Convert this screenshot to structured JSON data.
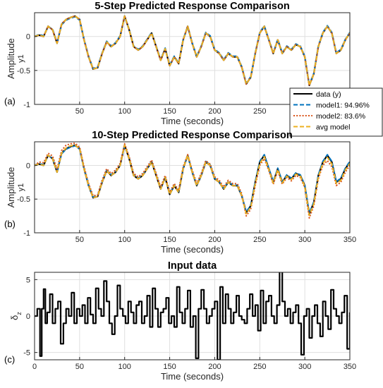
{
  "chart_data": [
    {
      "type": "line",
      "panel_tag": "(a)",
      "title": "5-Step Predicted Response Comparison",
      "xlabel": "Time (seconds)",
      "ylabel": "Amplitude",
      "ylabel_sub": "y1",
      "xlim": [
        0,
        350
      ],
      "ylim": [
        -1,
        0.35
      ],
      "xticks": [
        50,
        100,
        150,
        200,
        250,
        300
      ],
      "yticks": [
        -1,
        -0.5,
        0
      ],
      "grid": true,
      "legend": {
        "position": "bottom-right",
        "entries": [
          {
            "label": "data (y)",
            "color": "#000000",
            "style": "solid"
          },
          {
            "label": "model1: 94.96%",
            "color": "#0072BD",
            "style": "dashed"
          },
          {
            "label": "model2: 83.6%",
            "color": "#D95319",
            "style": "dotted"
          },
          {
            "label": "avg model",
            "color": "#EDB120",
            "style": "dashed"
          }
        ]
      },
      "x": [
        0,
        5,
        10,
        15,
        20,
        25,
        30,
        35,
        40,
        45,
        50,
        55,
        60,
        65,
        70,
        75,
        80,
        85,
        90,
        95,
        100,
        105,
        110,
        115,
        120,
        125,
        130,
        135,
        140,
        145,
        150,
        155,
        160,
        165,
        170,
        175,
        180,
        185,
        190,
        195,
        200,
        205,
        210,
        215,
        220,
        225,
        230,
        235,
        240,
        245,
        250,
        255,
        260,
        265,
        270,
        275,
        280,
        285,
        290,
        295,
        300,
        305,
        310,
        315,
        320,
        325,
        330,
        335,
        340,
        345,
        350
      ],
      "series": [
        {
          "name": "data (y)",
          "color": "#000000",
          "style": "solid",
          "values": [
            0,
            0.02,
            0,
            0.15,
            0.1,
            -0.1,
            0.18,
            0.25,
            0.28,
            0.3,
            0.25,
            -0.05,
            -0.3,
            -0.48,
            -0.46,
            -0.25,
            -0.08,
            -0.15,
            -0.1,
            0,
            0.3,
            0.1,
            -0.15,
            -0.2,
            -0.15,
            -0.05,
            0.05,
            -0.15,
            -0.35,
            -0.18,
            -0.43,
            -0.3,
            -0.4,
            -0.05,
            0.15,
            -0.1,
            -0.3,
            -0.15,
            0.05,
            0,
            -0.2,
            -0.25,
            -0.35,
            -0.25,
            -0.3,
            -0.3,
            -0.45,
            -0.7,
            -0.6,
            -0.25,
            0.05,
            0.15,
            -0.05,
            -0.25,
            -0.05,
            -0.25,
            -0.15,
            -0.2,
            -0.12,
            -0.15,
            -0.3,
            -0.72,
            -0.55,
            -0.15,
            0.05,
            0.15,
            0.05,
            -0.25,
            -0.2,
            -0.05,
            0.05
          ]
        },
        {
          "name": "model1: 94.96%",
          "color": "#0072BD",
          "style": "dashed",
          "values": [
            0,
            0.03,
            0.01,
            0.14,
            0.11,
            -0.09,
            0.17,
            0.24,
            0.27,
            0.29,
            0.24,
            -0.04,
            -0.29,
            -0.47,
            -0.45,
            -0.24,
            -0.07,
            -0.14,
            -0.09,
            0.01,
            0.29,
            0.11,
            -0.14,
            -0.19,
            -0.14,
            -0.04,
            0.06,
            -0.14,
            -0.34,
            -0.17,
            -0.42,
            -0.29,
            -0.39,
            -0.04,
            0.14,
            -0.09,
            -0.29,
            -0.14,
            0.06,
            0.01,
            -0.19,
            -0.24,
            -0.34,
            -0.24,
            -0.29,
            -0.29,
            -0.44,
            -0.69,
            -0.59,
            -0.24,
            0.06,
            0.16,
            -0.04,
            -0.24,
            -0.04,
            -0.24,
            -0.14,
            -0.19,
            -0.11,
            -0.14,
            -0.29,
            -0.71,
            -0.54,
            -0.14,
            0.06,
            0.16,
            0.06,
            -0.24,
            -0.19,
            -0.04,
            0.06
          ]
        },
        {
          "name": "model2: 83.6%",
          "color": "#D95319",
          "style": "dotted",
          "values": [
            0,
            0.02,
            0,
            0.15,
            0.1,
            -0.1,
            0.18,
            0.25,
            0.28,
            0.3,
            0.25,
            -0.05,
            -0.3,
            -0.48,
            -0.46,
            -0.25,
            -0.08,
            -0.15,
            -0.1,
            0,
            0.3,
            0.1,
            -0.15,
            -0.2,
            -0.15,
            -0.05,
            0.05,
            -0.15,
            -0.35,
            -0.18,
            -0.43,
            -0.3,
            -0.4,
            -0.05,
            0.15,
            -0.1,
            -0.3,
            -0.15,
            0.05,
            0,
            -0.2,
            -0.25,
            -0.35,
            -0.25,
            -0.3,
            -0.3,
            -0.45,
            -0.7,
            -0.6,
            -0.25,
            0.05,
            0.15,
            -0.05,
            -0.25,
            -0.05,
            -0.25,
            -0.15,
            -0.2,
            -0.12,
            -0.15,
            -0.3,
            -0.72,
            -0.55,
            -0.15,
            0.05,
            0.15,
            0.05,
            -0.25,
            -0.2,
            -0.05,
            0.05
          ]
        },
        {
          "name": "avg model",
          "color": "#EDB120",
          "style": "dashed",
          "values": [
            0,
            0.02,
            0,
            0.15,
            0.1,
            -0.1,
            0.18,
            0.25,
            0.28,
            0.3,
            0.25,
            -0.05,
            -0.3,
            -0.48,
            -0.46,
            -0.25,
            -0.08,
            -0.15,
            -0.1,
            0,
            0.3,
            0.1,
            -0.15,
            -0.2,
            -0.15,
            -0.05,
            0.05,
            -0.15,
            -0.35,
            -0.18,
            -0.43,
            -0.3,
            -0.4,
            -0.05,
            0.15,
            -0.1,
            -0.3,
            -0.15,
            0.05,
            0,
            -0.2,
            -0.25,
            -0.35,
            -0.25,
            -0.3,
            -0.3,
            -0.45,
            -0.7,
            -0.6,
            -0.25,
            0.05,
            0.15,
            -0.05,
            -0.25,
            -0.05,
            -0.25,
            -0.15,
            -0.2,
            -0.12,
            -0.15,
            -0.3,
            -0.72,
            -0.55,
            -0.15,
            0.05,
            0.15,
            0.05,
            -0.25,
            -0.2,
            -0.05,
            0.05
          ]
        }
      ]
    },
    {
      "type": "line",
      "panel_tag": "(b)",
      "title": "10-Step Predicted Response Comparison",
      "xlabel": "Time (seconds)",
      "ylabel": "Amplitude",
      "ylabel_sub": "y1",
      "xlim": [
        0,
        350
      ],
      "ylim": [
        -1,
        0.35
      ],
      "xticks": [
        50,
        100,
        150,
        200,
        250,
        300,
        350
      ],
      "yticks": [
        -1,
        -0.5,
        0
      ],
      "grid": true,
      "x": [
        0,
        5,
        10,
        15,
        20,
        25,
        30,
        35,
        40,
        45,
        50,
        55,
        60,
        65,
        70,
        75,
        80,
        85,
        90,
        95,
        100,
        105,
        110,
        115,
        120,
        125,
        130,
        135,
        140,
        145,
        150,
        155,
        160,
        165,
        170,
        175,
        180,
        185,
        190,
        195,
        200,
        205,
        210,
        215,
        220,
        225,
        230,
        235,
        240,
        245,
        250,
        255,
        260,
        265,
        270,
        275,
        280,
        285,
        290,
        295,
        300,
        305,
        310,
        315,
        320,
        325,
        330,
        335,
        340,
        345,
        350
      ],
      "series": [
        {
          "name": "data (y)",
          "color": "#000000",
          "style": "solid",
          "values": [
            0,
            0.02,
            0,
            0.15,
            0.1,
            -0.1,
            0.18,
            0.25,
            0.28,
            0.3,
            0.25,
            -0.05,
            -0.3,
            -0.48,
            -0.46,
            -0.25,
            -0.08,
            -0.15,
            -0.1,
            0,
            0.3,
            0.1,
            -0.15,
            -0.2,
            -0.15,
            -0.05,
            0.05,
            -0.15,
            -0.35,
            -0.18,
            -0.43,
            -0.3,
            -0.4,
            -0.05,
            0.15,
            -0.1,
            -0.3,
            -0.15,
            0.05,
            0,
            -0.2,
            -0.25,
            -0.35,
            -0.25,
            -0.3,
            -0.3,
            -0.45,
            -0.7,
            -0.6,
            -0.25,
            0.05,
            0.15,
            -0.05,
            -0.25,
            -0.05,
            -0.25,
            -0.15,
            -0.2,
            -0.12,
            -0.15,
            -0.3,
            -0.72,
            -0.55,
            -0.15,
            0.05,
            0.15,
            0.05,
            -0.25,
            -0.2,
            -0.05,
            0.05
          ]
        },
        {
          "name": "model1: 94.96%",
          "color": "#0072BD",
          "style": "dashed",
          "values": [
            0,
            0.03,
            0.01,
            0.14,
            0.11,
            -0.09,
            0.17,
            0.24,
            0.27,
            0.29,
            0.24,
            -0.04,
            -0.29,
            -0.47,
            -0.45,
            -0.24,
            -0.07,
            -0.14,
            -0.09,
            0.01,
            0.29,
            0.11,
            -0.14,
            -0.19,
            -0.14,
            -0.04,
            0.06,
            -0.14,
            -0.34,
            -0.17,
            -0.42,
            -0.29,
            -0.39,
            -0.04,
            0.14,
            -0.09,
            -0.29,
            -0.14,
            0.06,
            0.01,
            -0.19,
            -0.24,
            -0.34,
            -0.24,
            -0.29,
            -0.29,
            -0.44,
            -0.69,
            -0.59,
            -0.24,
            0.06,
            0.16,
            -0.04,
            -0.24,
            -0.04,
            -0.24,
            -0.14,
            -0.19,
            -0.11,
            -0.14,
            -0.29,
            -0.71,
            -0.54,
            -0.14,
            0.06,
            0.16,
            0.06,
            -0.24,
            -0.19,
            -0.04,
            0.06
          ]
        },
        {
          "name": "model2: 83.6%",
          "color": "#D95319",
          "style": "dotted",
          "values": [
            0,
            0.05,
            0.04,
            0.18,
            0.14,
            -0.06,
            0.22,
            0.3,
            0.32,
            0.33,
            0.27,
            -0.02,
            -0.27,
            -0.45,
            -0.44,
            -0.22,
            -0.05,
            -0.12,
            -0.07,
            0.03,
            0.32,
            0.13,
            -0.12,
            -0.17,
            -0.12,
            -0.02,
            0.08,
            -0.12,
            -0.32,
            -0.15,
            -0.4,
            -0.27,
            -0.37,
            -0.02,
            0.16,
            -0.07,
            -0.27,
            -0.12,
            0.07,
            0.02,
            -0.17,
            -0.22,
            -0.32,
            -0.22,
            -0.27,
            -0.27,
            -0.42,
            -0.75,
            -0.65,
            -0.3,
            0,
            0.1,
            -0.08,
            -0.28,
            -0.08,
            -0.28,
            -0.18,
            -0.23,
            -0.15,
            -0.18,
            -0.33,
            -0.78,
            -0.6,
            -0.2,
            0,
            0.07,
            -0.02,
            -0.3,
            -0.25,
            -0.1,
            0
          ]
        },
        {
          "name": "avg model",
          "color": "#EDB120",
          "style": "dashed",
          "values": [
            0,
            0.02,
            0,
            0.15,
            0.1,
            -0.1,
            0.18,
            0.26,
            0.29,
            0.3,
            0.25,
            -0.05,
            -0.3,
            -0.48,
            -0.46,
            -0.25,
            -0.08,
            -0.15,
            -0.1,
            0,
            0.3,
            0.1,
            -0.15,
            -0.2,
            -0.15,
            -0.05,
            0.05,
            -0.15,
            -0.35,
            -0.18,
            -0.43,
            -0.3,
            -0.4,
            -0.05,
            0.15,
            -0.1,
            -0.3,
            -0.15,
            0.05,
            0,
            -0.2,
            -0.25,
            -0.35,
            -0.25,
            -0.3,
            -0.3,
            -0.45,
            -0.72,
            -0.62,
            -0.27,
            0.03,
            0.13,
            -0.06,
            -0.26,
            -0.06,
            -0.26,
            -0.16,
            -0.21,
            -0.13,
            -0.16,
            -0.31,
            -0.74,
            -0.57,
            -0.17,
            0.03,
            0.12,
            0.02,
            -0.27,
            -0.22,
            -0.07,
            0.03
          ]
        }
      ]
    },
    {
      "type": "line",
      "panel_tag": "(c)",
      "title": "Input data",
      "xlabel": "Time (seconds)",
      "ylabel": "δ",
      "ylabel_sub": "z",
      "xlim": [
        0,
        350
      ],
      "ylim": [
        -6,
        6
      ],
      "xticks": [
        0,
        50,
        100,
        150,
        200,
        250,
        300,
        350
      ],
      "yticks": [
        -5,
        0,
        5
      ],
      "grid": true,
      "step": true,
      "x": [
        0,
        3,
        6,
        8,
        10,
        12,
        14,
        17,
        20,
        23,
        26,
        29,
        32,
        35,
        38,
        41,
        44,
        47,
        50,
        53,
        56,
        59,
        62,
        65,
        68,
        71,
        74,
        77,
        80,
        83,
        86,
        89,
        92,
        95,
        98,
        101,
        104,
        107,
        110,
        113,
        116,
        119,
        122,
        125,
        128,
        131,
        134,
        137,
        140,
        143,
        146,
        149,
        152,
        155,
        158,
        161,
        164,
        167,
        170,
        173,
        176,
        179,
        182,
        185,
        188,
        191,
        194,
        197,
        200,
        203,
        206,
        209,
        212,
        215,
        218,
        221,
        224,
        227,
        230,
        233,
        236,
        239,
        242,
        245,
        248,
        251,
        254,
        257,
        260,
        263,
        266,
        269,
        272,
        275,
        278,
        281,
        284,
        287,
        290,
        293,
        296,
        299,
        302,
        305,
        308,
        311,
        314,
        317,
        320,
        323,
        326,
        329,
        332,
        335,
        338,
        341,
        344,
        347,
        350
      ],
      "series": [
        {
          "name": "",
          "color": "#000000",
          "style": "solid",
          "values": [
            0,
            1,
            -5.5,
            1,
            3.7,
            -1,
            0.5,
            3,
            -1,
            1,
            2,
            -3.8,
            -1,
            1,
            0,
            3.2,
            -1,
            1,
            0,
            1.5,
            -1,
            2.5,
            0.2,
            -1,
            3.8,
            1,
            0,
            4.8,
            2,
            -1,
            -2.5,
            0,
            4.2,
            1,
            0,
            -1,
            2,
            0.5,
            -1,
            1.5,
            2,
            -1,
            0,
            2.8,
            -1.5,
            3.8,
            1,
            -1.5,
            0.5,
            1,
            2.5,
            -1,
            0,
            -1.5,
            4,
            0.5,
            -1,
            1,
            3.5,
            -1.5,
            0,
            -5.8,
            1,
            3.6,
            1,
            -1,
            0,
            1,
            2,
            -6,
            4,
            -1,
            3,
            1,
            -1,
            0.5,
            2.8,
            0,
            -0.5,
            -1,
            1,
            3,
            0,
            1.5,
            -2,
            3.5,
            -1,
            2,
            2.8,
            0,
            -1,
            1.5,
            6.3,
            2,
            0,
            1,
            -1,
            0.5,
            1.5,
            -1,
            -5.3,
            0,
            1,
            -3,
            0,
            1.5,
            -1,
            -2.8,
            2,
            0,
            -1.8,
            3.6,
            1,
            0,
            -1,
            0.5,
            2.8,
            -4.5,
            0.5
          ]
        }
      ]
    }
  ]
}
